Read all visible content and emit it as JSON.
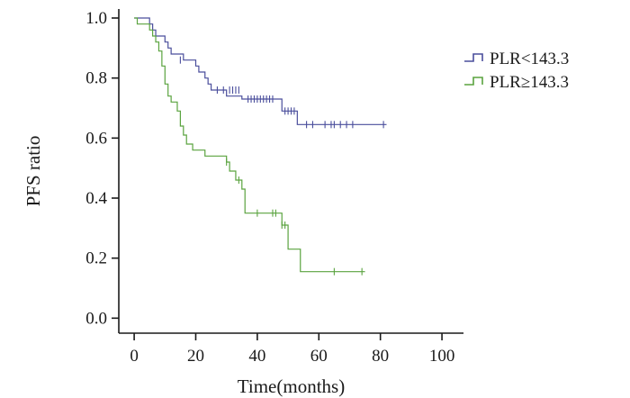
{
  "chart_data": {
    "type": "line",
    "title": "",
    "xlabel": "Time(months)",
    "ylabel": "PFS ratio",
    "xlim": [
      -5,
      107
    ],
    "ylim": [
      -0.05,
      1.03
    ],
    "xticks": [
      0,
      20,
      40,
      60,
      80,
      100
    ],
    "xtick_labels": [
      "0",
      "20",
      "40",
      "60",
      "80",
      "100"
    ],
    "yticks": [
      0.0,
      0.2,
      0.4,
      0.6,
      0.8,
      1.0
    ],
    "ytick_labels": [
      "0.0",
      "0.2",
      "0.4",
      "0.6",
      "0.8",
      "1.0"
    ],
    "grid": false,
    "legend_position": "top-right",
    "series": [
      {
        "name": "PLR<143.3",
        "color": "#4a4e9c",
        "steps": [
          [
            0,
            1.0
          ],
          [
            5,
            0.98
          ],
          [
            6,
            0.96
          ],
          [
            7,
            0.94
          ],
          [
            10,
            0.92
          ],
          [
            11,
            0.9
          ],
          [
            12,
            0.88
          ],
          [
            16,
            0.86
          ],
          [
            20,
            0.84
          ],
          [
            21,
            0.82
          ],
          [
            23,
            0.8
          ],
          [
            24,
            0.78
          ],
          [
            25,
            0.76
          ],
          [
            30,
            0.74
          ],
          [
            35,
            0.73
          ],
          [
            48,
            0.69
          ],
          [
            53,
            0.645
          ],
          [
            82,
            0.645
          ]
        ],
        "censored": [
          [
            15,
            0.86
          ],
          [
            27,
            0.76
          ],
          [
            29,
            0.76
          ],
          [
            31,
            0.76
          ],
          [
            32,
            0.76
          ],
          [
            33,
            0.76
          ],
          [
            34,
            0.76
          ],
          [
            37,
            0.73
          ],
          [
            38,
            0.73
          ],
          [
            39,
            0.73
          ],
          [
            40,
            0.73
          ],
          [
            41,
            0.73
          ],
          [
            42,
            0.73
          ],
          [
            43,
            0.73
          ],
          [
            44,
            0.73
          ],
          [
            45,
            0.73
          ],
          [
            49,
            0.69
          ],
          [
            50,
            0.69
          ],
          [
            51,
            0.69
          ],
          [
            52,
            0.69
          ],
          [
            56,
            0.645
          ],
          [
            58,
            0.645
          ],
          [
            62,
            0.645
          ],
          [
            64,
            0.645
          ],
          [
            65,
            0.645
          ],
          [
            67,
            0.645
          ],
          [
            69,
            0.645
          ],
          [
            71,
            0.645
          ],
          [
            81,
            0.645
          ]
        ]
      },
      {
        "name": "PLR≥143.3",
        "color": "#5aa33f",
        "steps": [
          [
            0,
            1.0
          ],
          [
            1,
            0.98
          ],
          [
            5,
            0.96
          ],
          [
            6,
            0.94
          ],
          [
            7,
            0.92
          ],
          [
            8,
            0.89
          ],
          [
            9,
            0.84
          ],
          [
            10,
            0.78
          ],
          [
            11,
            0.74
          ],
          [
            12,
            0.72
          ],
          [
            14,
            0.69
          ],
          [
            15,
            0.64
          ],
          [
            16,
            0.61
          ],
          [
            17,
            0.58
          ],
          [
            19,
            0.56
          ],
          [
            23,
            0.54
          ],
          [
            30,
            0.52
          ],
          [
            31,
            0.49
          ],
          [
            33,
            0.46
          ],
          [
            35,
            0.43
          ],
          [
            36,
            0.35
          ],
          [
            48,
            0.31
          ],
          [
            50,
            0.23
          ],
          [
            54,
            0.155
          ],
          [
            75,
            0.155
          ]
        ],
        "censored": [
          [
            30,
            0.52
          ],
          [
            34,
            0.46
          ],
          [
            40,
            0.35
          ],
          [
            45,
            0.35
          ],
          [
            46,
            0.35
          ],
          [
            48,
            0.31
          ],
          [
            49,
            0.31
          ],
          [
            65,
            0.155
          ],
          [
            74,
            0.155
          ]
        ]
      }
    ]
  }
}
